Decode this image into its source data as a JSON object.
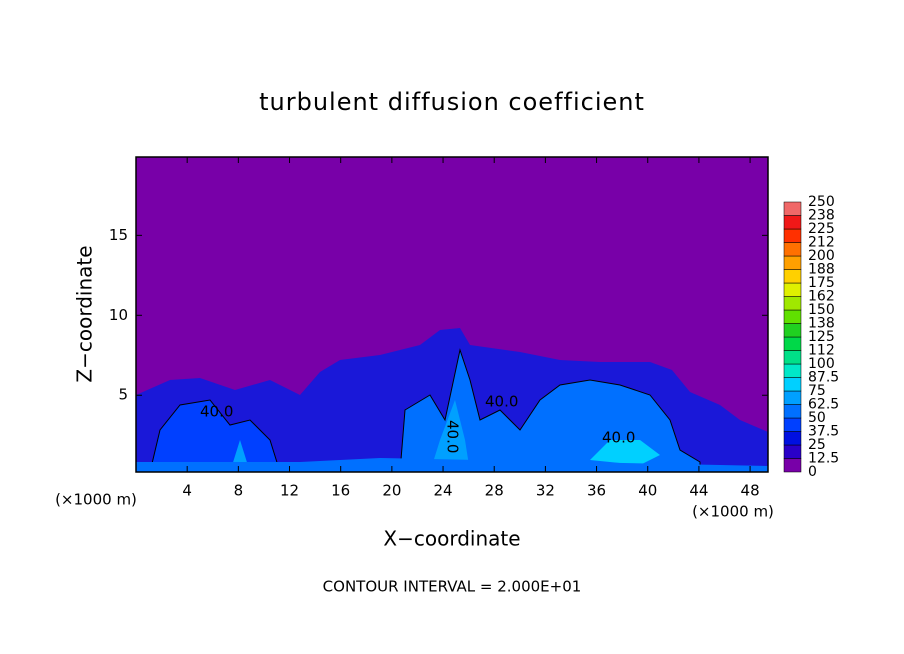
{
  "chart_data": {
    "type": "contour",
    "title": "turbulent diffusion coefficient",
    "xlabel": "X−coordinate",
    "ylabel": "Z−coordinate",
    "x_unit_labels": [
      "(×1000 m)",
      "(×1000 m)"
    ],
    "note": "CONTOUR INTERVAL = 2.000E+01",
    "contour_labels": [
      "40.0",
      "40.0",
      "40.0",
      "40.0"
    ],
    "xlim": [
      0,
      49.4
    ],
    "xticks": [
      4,
      8,
      12,
      16,
      20,
      24,
      28,
      32,
      36,
      40,
      44,
      48
    ],
    "ylim": [
      0.2,
      19.9
    ],
    "yticks": [
      5,
      10,
      15
    ],
    "colorbar": {
      "levels": [
        0,
        12.5,
        25,
        37.5,
        50,
        62.5,
        75,
        87.5,
        100,
        112,
        125,
        138,
        150,
        162,
        175,
        188,
        200,
        212,
        225,
        238,
        250
      ],
      "colors": [
        "#7800a8",
        "#2a00c8",
        "#0010e0",
        "#0040ff",
        "#0070ff",
        "#00a0ff",
        "#00d0ff",
        "#00e8c8",
        "#00e088",
        "#00d848",
        "#20d020",
        "#60e000",
        "#a0e800",
        "#e0f000",
        "#ffd000",
        "#ffa000",
        "#ff7000",
        "#ff3000",
        "#f01818",
        "#f06868"
      ]
    }
  }
}
